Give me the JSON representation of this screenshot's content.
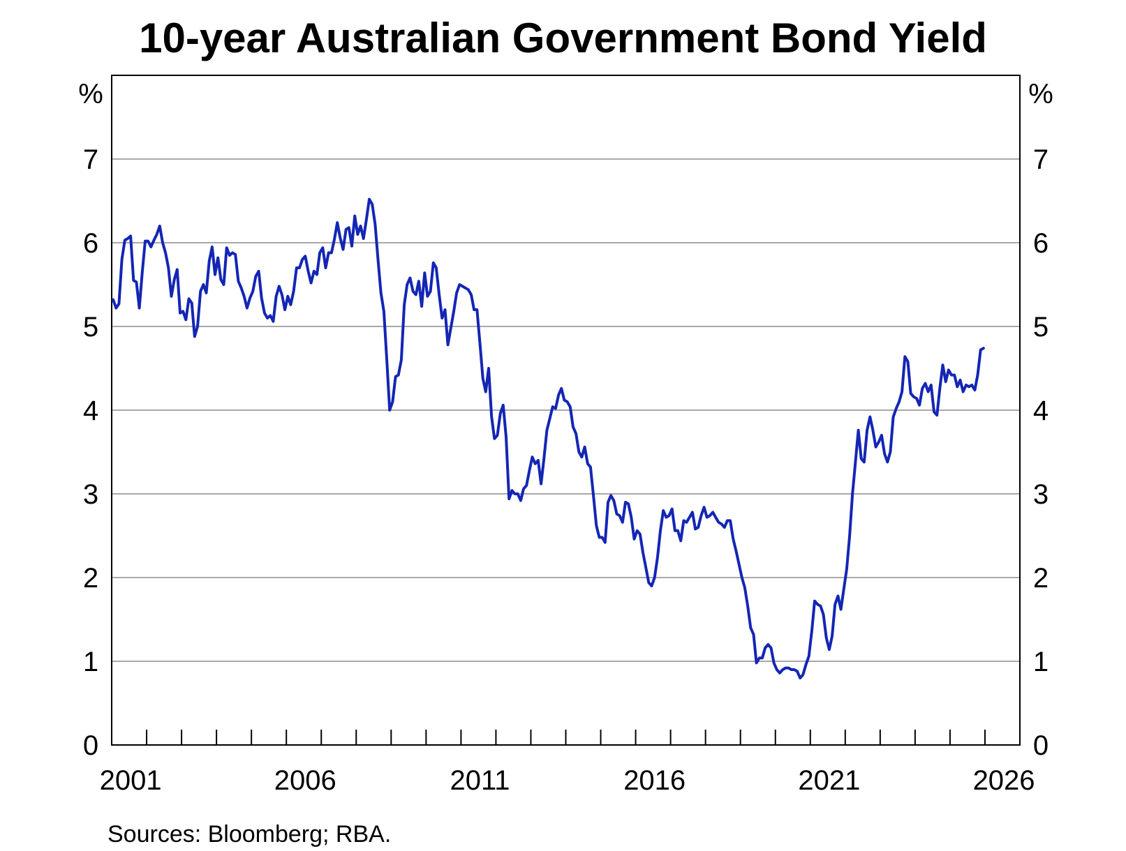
{
  "chart_data": {
    "type": "line",
    "title": "10-year Australian Government Bond Yield",
    "unit_left": "%",
    "unit_right": "%",
    "ylim": [
      0,
      8
    ],
    "yticks": [
      0,
      1,
      2,
      3,
      4,
      5,
      6,
      7
    ],
    "xlim": [
      "2001-01",
      "2026-12"
    ],
    "xtick_labels": [
      "2001",
      "2006",
      "2011",
      "2016",
      "2021",
      "2026"
    ],
    "grid": "horizontal",
    "line_color": "#1426b4",
    "x": [
      "2001-01",
      "2001-02",
      "2001-03",
      "2001-04",
      "2001-05",
      "2001-06",
      "2001-07",
      "2001-08",
      "2001-09",
      "2001-10",
      "2001-11",
      "2001-12",
      "2002-01",
      "2002-02",
      "2002-03",
      "2002-04",
      "2002-05",
      "2002-06",
      "2002-07",
      "2002-08",
      "2002-09",
      "2002-10",
      "2002-11",
      "2002-12",
      "2003-01",
      "2003-02",
      "2003-03",
      "2003-04",
      "2003-05",
      "2003-06",
      "2003-07",
      "2003-08",
      "2003-09",
      "2003-10",
      "2003-11",
      "2003-12",
      "2004-01",
      "2004-02",
      "2004-03",
      "2004-04",
      "2004-05",
      "2004-06",
      "2004-07",
      "2004-08",
      "2004-09",
      "2004-10",
      "2004-11",
      "2004-12",
      "2005-01",
      "2005-02",
      "2005-03",
      "2005-04",
      "2005-05",
      "2005-06",
      "2005-07",
      "2005-08",
      "2005-09",
      "2005-10",
      "2005-11",
      "2005-12",
      "2006-01",
      "2006-02",
      "2006-03",
      "2006-04",
      "2006-05",
      "2006-06",
      "2006-07",
      "2006-08",
      "2006-09",
      "2006-10",
      "2006-11",
      "2006-12",
      "2007-01",
      "2007-02",
      "2007-03",
      "2007-04",
      "2007-05",
      "2007-06",
      "2007-07",
      "2007-08",
      "2007-09",
      "2007-10",
      "2007-11",
      "2007-12",
      "2008-01",
      "2008-02",
      "2008-03",
      "2008-04",
      "2008-05",
      "2008-06",
      "2008-07",
      "2008-08",
      "2008-09",
      "2008-10",
      "2008-11",
      "2008-12",
      "2009-01",
      "2009-02",
      "2009-03",
      "2009-04",
      "2009-05",
      "2009-06",
      "2009-07",
      "2009-08",
      "2009-09",
      "2009-10",
      "2009-11",
      "2009-12",
      "2010-01",
      "2010-02",
      "2010-03",
      "2010-04",
      "2010-05",
      "2010-06",
      "2010-07",
      "2010-08",
      "2010-09",
      "2010-10",
      "2010-11",
      "2010-12",
      "2011-01",
      "2011-02",
      "2011-03",
      "2011-04",
      "2011-05",
      "2011-06",
      "2011-07",
      "2011-08",
      "2011-09",
      "2011-10",
      "2011-11",
      "2011-12",
      "2012-01",
      "2012-02",
      "2012-03",
      "2012-04",
      "2012-05",
      "2012-06",
      "2012-07",
      "2012-08",
      "2012-09",
      "2012-10",
      "2012-11",
      "2012-12",
      "2013-01",
      "2013-02",
      "2013-03",
      "2013-04",
      "2013-05",
      "2013-06",
      "2013-07",
      "2013-08",
      "2013-09",
      "2013-10",
      "2013-11",
      "2013-12",
      "2014-01",
      "2014-02",
      "2014-03",
      "2014-04",
      "2014-05",
      "2014-06",
      "2014-07",
      "2014-08",
      "2014-09",
      "2014-10",
      "2014-11",
      "2014-12",
      "2015-01",
      "2015-02",
      "2015-03",
      "2015-04",
      "2015-05",
      "2015-06",
      "2015-07",
      "2015-08",
      "2015-09",
      "2015-10",
      "2015-11",
      "2015-12",
      "2016-01",
      "2016-02",
      "2016-03",
      "2016-04",
      "2016-05",
      "2016-06",
      "2016-07",
      "2016-08",
      "2016-09",
      "2016-10",
      "2016-11",
      "2016-12",
      "2017-01",
      "2017-02",
      "2017-03",
      "2017-04",
      "2017-05",
      "2017-06",
      "2017-07",
      "2017-08",
      "2017-09",
      "2017-10",
      "2017-11",
      "2017-12",
      "2018-01",
      "2018-02",
      "2018-03",
      "2018-04",
      "2018-05",
      "2018-06",
      "2018-07",
      "2018-08",
      "2018-09",
      "2018-10",
      "2018-11",
      "2018-12",
      "2019-01",
      "2019-02",
      "2019-03",
      "2019-04",
      "2019-05",
      "2019-06",
      "2019-07",
      "2019-08",
      "2019-09",
      "2019-10",
      "2019-11",
      "2019-12",
      "2020-01",
      "2020-02",
      "2020-03",
      "2020-04",
      "2020-05",
      "2020-06",
      "2020-07",
      "2020-08",
      "2020-09",
      "2020-10",
      "2020-11",
      "2020-12",
      "2021-01",
      "2021-02",
      "2021-03",
      "2021-04",
      "2021-05",
      "2021-06",
      "2021-07",
      "2021-08",
      "2021-09",
      "2021-10",
      "2021-11",
      "2021-12",
      "2022-01",
      "2022-02",
      "2022-03",
      "2022-04",
      "2022-05",
      "2022-06",
      "2022-07",
      "2022-08",
      "2022-09",
      "2022-10",
      "2022-11",
      "2022-12",
      "2023-01",
      "2023-02",
      "2023-03",
      "2023-04",
      "2023-05",
      "2023-06",
      "2023-07",
      "2023-08",
      "2023-09",
      "2023-10",
      "2023-11",
      "2023-12",
      "2024-01",
      "2024-02",
      "2024-03",
      "2024-04",
      "2024-05",
      "2024-06",
      "2024-07",
      "2024-08",
      "2024-09",
      "2024-10",
      "2024-11",
      "2024-12",
      "2025-01",
      "2025-02",
      "2025-03",
      "2025-04",
      "2025-05",
      "2025-06",
      "2025-07",
      "2025-08",
      "2025-09",
      "2025-10",
      "2025-11",
      "2025-12"
    ],
    "series": [
      {
        "values": [
          5.32,
          5.22,
          5.27,
          5.8,
          6.03,
          6.05,
          6.08,
          5.55,
          5.53,
          5.22,
          5.65,
          6.02,
          6.02,
          5.95,
          6.03,
          6.1,
          6.2,
          6.0,
          5.88,
          5.7,
          5.36,
          5.56,
          5.68,
          5.16,
          5.18,
          5.08,
          5.33,
          5.28,
          4.88,
          5.0,
          5.42,
          5.5,
          5.4,
          5.78,
          5.95,
          5.62,
          5.82,
          5.56,
          5.5,
          5.94,
          5.85,
          5.88,
          5.86,
          5.54,
          5.46,
          5.36,
          5.22,
          5.34,
          5.42,
          5.6,
          5.66,
          5.34,
          5.16,
          5.1,
          5.13,
          5.06,
          5.36,
          5.48,
          5.38,
          5.2,
          5.36,
          5.26,
          5.42,
          5.7,
          5.7,
          5.8,
          5.84,
          5.66,
          5.52,
          5.66,
          5.62,
          5.88,
          5.94,
          5.7,
          5.88,
          5.88,
          6.04,
          6.24,
          6.06,
          5.92,
          6.16,
          6.18,
          5.96,
          6.32,
          6.1,
          6.2,
          6.05,
          6.28,
          6.52,
          6.46,
          6.22,
          5.8,
          5.4,
          5.18,
          4.6,
          4.0,
          4.1,
          4.4,
          4.42,
          4.6,
          5.26,
          5.5,
          5.58,
          5.42,
          5.38,
          5.54,
          5.24,
          5.64,
          5.36,
          5.42,
          5.76,
          5.7,
          5.38,
          5.1,
          5.2,
          4.78,
          4.98,
          5.18,
          5.4,
          5.5,
          5.48,
          5.46,
          5.44,
          5.38,
          5.2,
          5.2,
          4.8,
          4.38,
          4.22,
          4.5,
          3.92,
          3.66,
          3.7,
          3.96,
          4.06,
          3.68,
          2.94,
          3.04,
          3.0,
          3.0,
          2.92,
          3.06,
          3.1,
          3.28,
          3.44,
          3.36,
          3.4,
          3.12,
          3.42,
          3.76,
          3.9,
          4.04,
          4.02,
          4.18,
          4.26,
          4.12,
          4.1,
          4.04,
          3.8,
          3.72,
          3.5,
          3.44,
          3.56,
          3.36,
          3.32,
          2.98,
          2.62,
          2.48,
          2.48,
          2.42,
          2.9,
          2.98,
          2.92,
          2.76,
          2.74,
          2.66,
          2.9,
          2.88,
          2.72,
          2.46,
          2.56,
          2.52,
          2.3,
          2.12,
          1.94,
          1.9,
          2.0,
          2.24,
          2.56,
          2.8,
          2.72,
          2.74,
          2.82,
          2.56,
          2.56,
          2.44,
          2.68,
          2.66,
          2.72,
          2.78,
          2.58,
          2.6,
          2.74,
          2.84,
          2.72,
          2.74,
          2.78,
          2.72,
          2.66,
          2.64,
          2.6,
          2.68,
          2.68,
          2.46,
          2.32,
          2.16,
          2.0,
          1.88,
          1.66,
          1.4,
          1.32,
          0.98,
          1.04,
          1.04,
          1.16,
          1.2,
          1.16,
          0.98,
          0.9,
          0.86,
          0.9,
          0.92,
          0.92,
          0.9,
          0.9,
          0.88,
          0.8,
          0.84,
          0.96,
          1.06,
          1.36,
          1.72,
          1.68,
          1.66,
          1.56,
          1.28,
          1.14,
          1.3,
          1.68,
          1.78,
          1.62,
          1.86,
          2.1,
          2.5,
          3.0,
          3.38,
          3.76,
          3.42,
          3.38,
          3.76,
          3.92,
          3.76,
          3.56,
          3.62,
          3.7,
          3.48,
          3.38,
          3.5,
          3.92,
          4.02,
          4.1,
          4.22,
          4.64,
          4.58,
          4.2,
          4.16,
          4.14,
          4.06,
          4.26,
          4.32,
          4.22,
          4.3,
          3.98,
          3.94,
          4.26,
          4.54,
          4.34,
          4.48,
          4.42,
          4.42,
          4.28,
          4.36,
          4.22,
          4.3,
          4.28,
          4.3,
          4.24,
          4.42,
          4.72,
          4.74
        ]
      }
    ]
  },
  "source_note": "Sources: Bloomberg; RBA."
}
